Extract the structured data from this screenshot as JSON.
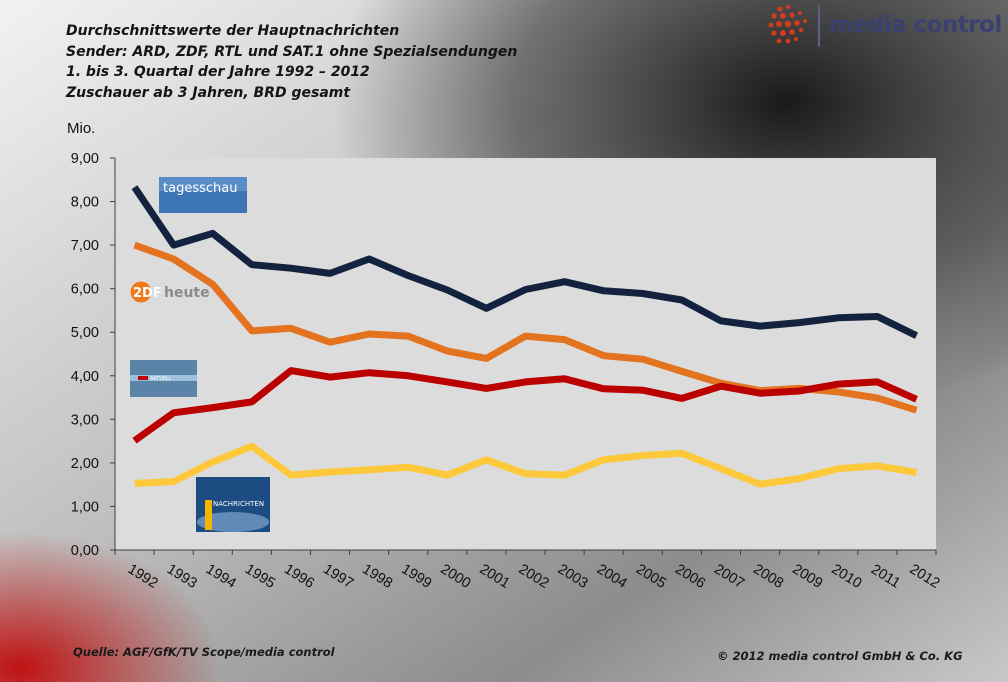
{
  "header": {
    "lines": [
      "Durchschnittswerte der Hauptnachrichten",
      "Sender: ARD, ZDF, RTL und SAT.1 ohne Spezialsendungen",
      "1. bis 3. Quartal der Jahre 1992 – 2012",
      "Zuschauer ab 3 Jahren, BRD gesamt"
    ]
  },
  "logo": {
    "text": "media control"
  },
  "footer": {
    "source": "Quelle: AGF/GfK/TV Scope/media control",
    "copyright": "© 2012 media control GmbH & Co. KG"
  },
  "chart_data": {
    "type": "line",
    "ylabel": "Mio.",
    "ylim": [
      0,
      9
    ],
    "yticks": [
      "0,00",
      "1,00",
      "2,00",
      "3,00",
      "4,00",
      "5,00",
      "6,00",
      "7,00",
      "8,00",
      "9,00"
    ],
    "categories": [
      "1992",
      "1993",
      "1994",
      "1995",
      "1996",
      "1997",
      "1998",
      "1999",
      "2000",
      "2001",
      "2002",
      "2003",
      "2004",
      "2005",
      "2006",
      "2007",
      "2008",
      "2009",
      "2010",
      "2011",
      "2012"
    ],
    "grid": false,
    "legend": "logo images at left of lines",
    "series": [
      {
        "name": "tagesschau",
        "color": "#13233f",
        "values": [
          8.33,
          7.0,
          7.27,
          6.55,
          6.47,
          6.35,
          6.68,
          6.3,
          5.97,
          5.55,
          5.98,
          6.16,
          5.95,
          5.89,
          5.74,
          5.26,
          5.14,
          5.22,
          5.33,
          5.36,
          4.92
        ]
      },
      {
        "name": "heute",
        "color": "#e3731e",
        "values": [
          7.0,
          6.68,
          6.1,
          5.03,
          5.09,
          4.77,
          4.96,
          4.91,
          4.57,
          4.4,
          4.91,
          4.83,
          4.46,
          4.38,
          4.1,
          3.83,
          3.66,
          3.71,
          3.63,
          3.49,
          3.21
        ]
      },
      {
        "name": "RTL Aktuell",
        "color": "#bb0000",
        "values": [
          2.51,
          3.15,
          3.27,
          3.4,
          4.12,
          3.97,
          4.07,
          4.0,
          3.86,
          3.71,
          3.86,
          3.93,
          3.7,
          3.67,
          3.48,
          3.76,
          3.6,
          3.65,
          3.81,
          3.86,
          3.46
        ]
      },
      {
        "name": "SAT.1 Nachrichten",
        "color": "#fdc93a",
        "values": [
          1.53,
          1.57,
          2.02,
          2.38,
          1.72,
          1.79,
          1.84,
          1.9,
          1.72,
          2.07,
          1.75,
          1.72,
          2.07,
          2.17,
          2.22,
          1.87,
          1.51,
          1.64,
          1.87,
          1.93,
          1.78
        ]
      }
    ],
    "logos": {
      "tagesschau": "tagesschau",
      "zdf_mark": "2DF",
      "zdf_word": "heute",
      "rtl": "AKTUELL",
      "sat1": "NACHRICHTEN"
    }
  }
}
